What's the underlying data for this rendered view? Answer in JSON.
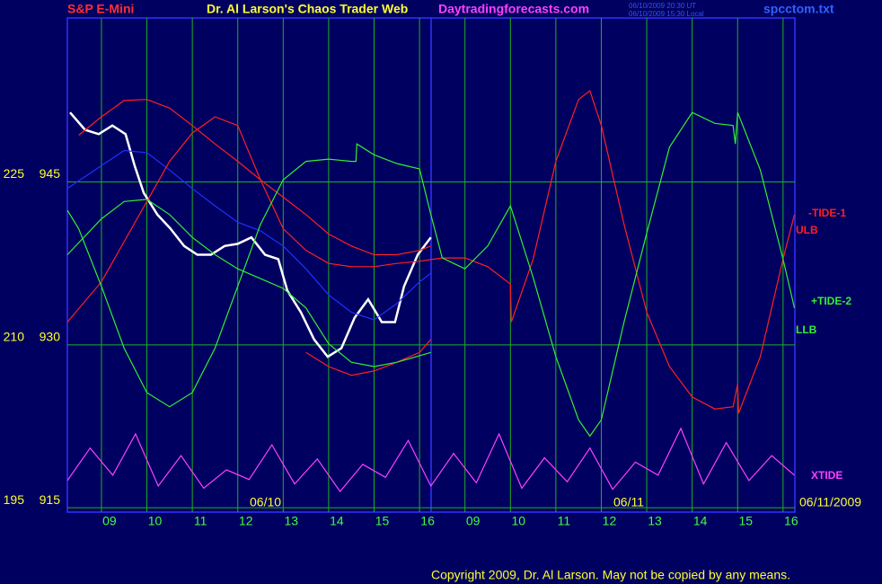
{
  "chart_data": {
    "type": "line",
    "symbol": "S&P E-Mini",
    "title": "Dr. Al Larson's Chaos Trader Web",
    "site": "Daytradingforecasts.com",
    "timestamps": [
      "06/10/2009 20:30 UT",
      "06/10/2009 15:30 Local"
    ],
    "file": "spcctom.txt",
    "copyright": "Copyright 2009, Dr. Al Larson. May not be copied by any means.",
    "categories": [
      "09",
      "10",
      "11",
      "12",
      "13",
      "14",
      "15",
      "16",
      "09",
      "10",
      "11",
      "12",
      "13",
      "14",
      "15",
      "16"
    ],
    "date_labels": [
      "06/10",
      "06/11",
      "06/11/2009"
    ],
    "xlim": [
      -0.75,
      15.26
    ],
    "ylim": [
      914.6,
      960.1
    ],
    "yticks": [
      915,
      930,
      945
    ],
    "y2lim": [
      194.6,
      240.1
    ],
    "y2ticks": [
      195,
      210,
      225
    ],
    "grid": true,
    "series": [
      {
        "color": "#ffffff",
        "x": [
          -0.69,
          -0.36,
          -0.06,
          0.24,
          0.53,
          0.73,
          0.93,
          1.23,
          1.52,
          1.82,
          2.11,
          2.41,
          2.71,
          3.0,
          3.3,
          3.6,
          3.89,
          4.09,
          4.39,
          4.68,
          4.98,
          5.28,
          5.57,
          5.87,
          6.17,
          6.46,
          6.66,
          6.96,
          7.25
        ],
        "values": [
          951.4,
          949.8,
          949.4,
          950.2,
          949.4,
          946.5,
          944.0,
          942.0,
          940.7,
          939.1,
          938.3,
          938.3,
          939.1,
          939.3,
          939.9,
          938.3,
          937.9,
          935.0,
          933.0,
          930.5,
          928.9,
          929.7,
          932.5,
          934.2,
          932.1,
          932.1,
          935.4,
          938.3,
          939.9
        ]
      },
      {
        "color": "#2030ff",
        "x": [
          -0.75,
          0,
          0.5,
          1,
          1.5,
          2,
          2.5,
          3,
          3.5,
          4,
          4.5,
          5,
          5.5,
          6,
          6.5,
          7,
          7.25
        ],
        "values": [
          944.4,
          946.5,
          947.9,
          947.7,
          946.1,
          944.4,
          942.8,
          941.3,
          940.5,
          939.1,
          937.0,
          934.6,
          933.0,
          932.3,
          933.8,
          935.8,
          936.6
        ]
      },
      {
        "color": "#ff2020",
        "x": [
          4.5,
          5,
          5.5,
          6,
          6.5,
          7,
          7.25
        ],
        "values": [
          929.3,
          928.0,
          927.2,
          927.6,
          928.4,
          929.3,
          930.5
        ]
      },
      {
        "name": "-TIDE-1",
        "color": "#ff2020",
        "x": [
          -0.75,
          0,
          0.5,
          1,
          1.5,
          2,
          2.5,
          3,
          3.5,
          4,
          4.5,
          5,
          5.5,
          6,
          6.5,
          7,
          7.5,
          8,
          8.5,
          9,
          9.02,
          9.5,
          10,
          10.5,
          10.75,
          11,
          11.5,
          12,
          12.5,
          13,
          13.5,
          13.9,
          14,
          14.02,
          14.5,
          15,
          15.25
        ],
        "values": [
          932.1,
          935.8,
          939.5,
          943.2,
          946.9,
          949.5,
          951.0,
          950.2,
          945.2,
          940.7,
          938.7,
          937.5,
          937.2,
          937.2,
          937.5,
          937.7,
          938.0,
          938.0,
          937.2,
          935.6,
          932.1,
          937.9,
          946.9,
          952.6,
          953.4,
          950.2,
          941.1,
          933.0,
          928.0,
          925.2,
          924.1,
          924.3,
          926.4,
          923.7,
          928.9,
          937.9,
          942.0
        ]
      },
      {
        "name": "ULB",
        "color": "#ff2020",
        "x": [
          -0.5,
          0,
          0.5,
          1,
          1.5,
          2,
          2.5,
          3,
          3.5,
          4,
          4.5,
          5,
          5.5,
          6,
          6.5,
          7,
          7.25
        ],
        "values": [
          949.3,
          951.0,
          952.5,
          952.6,
          951.8,
          950.2,
          948.5,
          946.9,
          945.2,
          943.6,
          942.0,
          940.2,
          939.1,
          938.3,
          938.3,
          938.7,
          939.1
        ]
      },
      {
        "name": "+TIDE-2",
        "color": "#33ee33",
        "x": [
          -0.75,
          -0.5,
          0,
          0.5,
          1,
          1.5,
          2,
          2.5,
          3,
          3.5,
          4,
          4.5,
          5,
          5.5,
          5.6,
          5.62,
          6,
          6.5,
          7,
          7.25,
          7.5,
          8,
          8.5,
          9,
          9.5,
          10,
          10.5,
          10.75,
          11,
          11.5,
          12,
          12.5,
          13,
          13.5,
          13.9,
          13.95,
          14,
          14.5,
          15,
          15.25
        ],
        "values": [
          942.4,
          940.7,
          935.4,
          929.7,
          925.6,
          924.3,
          925.6,
          929.7,
          935.4,
          941.1,
          945.2,
          946.9,
          947.1,
          946.9,
          946.9,
          948.5,
          947.5,
          946.7,
          946.2,
          942.0,
          938.0,
          937.0,
          939.1,
          942.8,
          936.2,
          928.9,
          923.1,
          921.6,
          923.1,
          932.1,
          940.3,
          948.2,
          951.4,
          950.4,
          950.2,
          948.5,
          951.4,
          946.1,
          937.9,
          933.4
        ]
      },
      {
        "name": "LLB",
        "color": "#33ee33",
        "x": [
          -0.75,
          0,
          0.5,
          1,
          1.5,
          2,
          2.5,
          3,
          3.5,
          4,
          4.5,
          5,
          5.5,
          6,
          6.5,
          7,
          7.25
        ],
        "values": [
          938.3,
          941.6,
          943.2,
          943.4,
          942.0,
          939.9,
          938.3,
          937.0,
          936.1,
          935.2,
          933.4,
          930.1,
          928.4,
          928.0,
          928.4,
          929.0,
          929.3
        ]
      },
      {
        "name": "XTIDE",
        "color": "#ff40ff",
        "x": [
          -0.75,
          -0.25,
          0.25,
          0.75,
          1.25,
          1.75,
          2.25,
          2.75,
          3.25,
          3.75,
          4.25,
          4.75,
          5.25,
          5.75,
          6.25,
          6.75,
          7.25,
          7.75,
          8.25,
          8.75,
          9.25,
          9.75,
          10.25,
          10.75,
          11.25,
          11.75,
          12.25,
          12.75,
          13.25,
          13.75,
          14.25,
          14.75,
          15.25
        ],
        "values": [
          917.5,
          920.5,
          918.0,
          921.8,
          917.0,
          919.8,
          916.8,
          918.5,
          917.6,
          920.8,
          917.2,
          919.5,
          916.5,
          919.0,
          917.8,
          921.2,
          917.0,
          920.0,
          917.3,
          921.8,
          916.8,
          919.6,
          917.4,
          920.5,
          916.7,
          919.2,
          918.0,
          922.3,
          917.2,
          921.0,
          917.5,
          919.8,
          918.0
        ]
      }
    ]
  }
}
